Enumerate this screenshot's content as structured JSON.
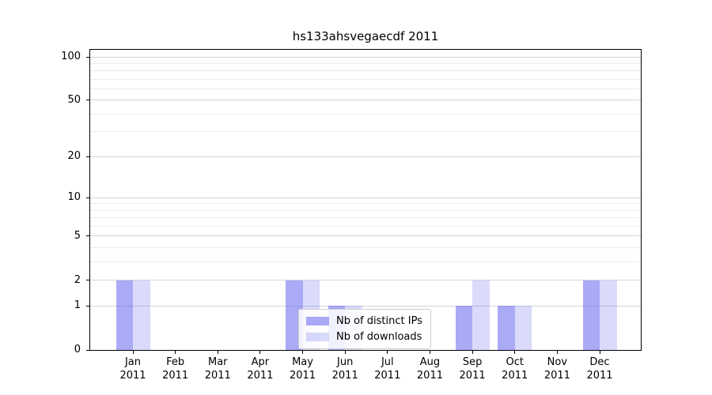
{
  "chart_data": {
    "type": "bar",
    "title": "hs133ahsvegaecdf 2011",
    "categories": [
      "Jan 2011",
      "Feb 2011",
      "Mar 2011",
      "Apr 2011",
      "May 2011",
      "Jun 2011",
      "Jul 2011",
      "Aug 2011",
      "Sep 2011",
      "Oct 2011",
      "Nov 2011",
      "Dec 2011"
    ],
    "series": [
      {
        "name": "Nb of distinct IPs",
        "color": "rgba(85,85,238,0.50)",
        "values": [
          2,
          0,
          0,
          0,
          2,
          1,
          0,
          0,
          1,
          1,
          0,
          2
        ]
      },
      {
        "name": "Nb of downloads",
        "color": "rgba(85,85,238,0.22)",
        "values": [
          2,
          0,
          0,
          0,
          2,
          1,
          0,
          0,
          2,
          1,
          0,
          2
        ]
      }
    ],
    "y_axis": {
      "scale": "log1p",
      "major_ticks": [
        0,
        1,
        2,
        5,
        10,
        20,
        50,
        100
      ],
      "minor_ticks": [
        3,
        4,
        6,
        7,
        8,
        9,
        30,
        40,
        60,
        70,
        80,
        90
      ],
      "top_value": 112
    },
    "x_axis": {
      "tick_count": 12
    },
    "legend": {
      "position": "lower-center"
    },
    "grid": true,
    "colors": {
      "major_grid": "#d4d4d4",
      "minor_grid": "#ececec",
      "axis": "#000000",
      "background": "#ffffff"
    }
  }
}
